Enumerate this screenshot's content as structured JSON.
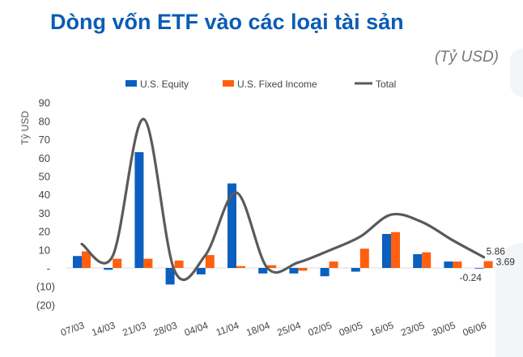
{
  "title": "Dòng vốn ETF vào các loại tài sản",
  "unit": "(Tỷ USD)",
  "chart_data": {
    "type": "bar",
    "title": "Dòng vốn ETF vào các loại tài sản",
    "ylabel": "Tỷ USD",
    "xlabel": "",
    "ylim": [
      -20,
      90
    ],
    "yticks": [
      90,
      80,
      70,
      60,
      50,
      40,
      30,
      20,
      10,
      0,
      -10,
      -20
    ],
    "ytick_labels": [
      "90",
      "80",
      "70",
      "60",
      "50",
      "40",
      "30",
      "20",
      "10",
      "-",
      "(10)",
      "(20)"
    ],
    "categories": [
      "07/03",
      "14/03",
      "21/03",
      "28/03",
      "04/04",
      "11/04",
      "18/04",
      "25/04",
      "02/05",
      "09/05",
      "16/05",
      "23/05",
      "30/05",
      "06/06"
    ],
    "legend_position": "top",
    "grid": false,
    "series": [
      {
        "name": "U.S. Equity",
        "type": "bar",
        "color": "#0a5fbf",
        "values": [
          6.5,
          -1,
          63,
          -9,
          -3.5,
          46,
          -3,
          -3,
          -4.5,
          -2,
          18.5,
          7.5,
          3.5,
          -0.24
        ]
      },
      {
        "name": "U.S. Fixed Income",
        "type": "bar",
        "color": "#ff5f0f",
        "values": [
          9,
          5,
          5,
          4,
          7,
          1,
          1.5,
          -1.5,
          3.5,
          10.5,
          19.5,
          8.5,
          3.5,
          3.69
        ]
      },
      {
        "name": "Total",
        "type": "line",
        "color": "#5a5a5a",
        "values": [
          13,
          6.5,
          81,
          -1.5,
          7,
          41,
          0,
          3,
          9.5,
          17,
          29,
          25,
          15,
          5.86
        ]
      }
    ],
    "data_labels": [
      "5.86",
      "3.69",
      "-0.24"
    ]
  }
}
